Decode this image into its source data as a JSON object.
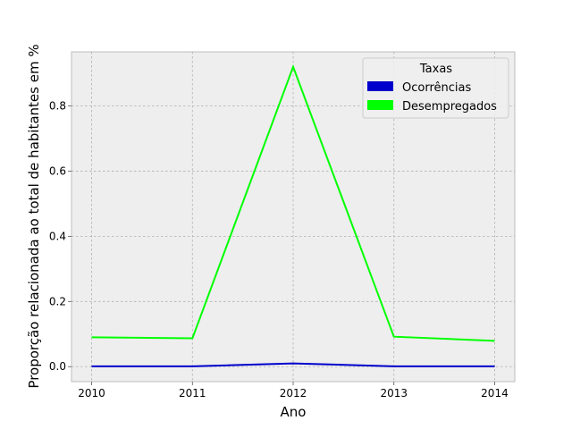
{
  "chart_data": {
    "type": "line",
    "title": "",
    "xlabel": "Ano",
    "ylabel": "Proporção relacionada ao total de habitantes em %",
    "x": [
      2010,
      2011,
      2012,
      2013,
      2014
    ],
    "x_tick_labels": [
      "2010",
      "2011",
      "2012",
      "2013",
      "2014"
    ],
    "xlim": [
      2009.8,
      2014.2
    ],
    "ylim": [
      -0.046,
      0.966
    ],
    "y_ticks": [
      0.0,
      0.2,
      0.4,
      0.6,
      0.8
    ],
    "y_tick_labels": [
      "0.0",
      "0.2",
      "0.4",
      "0.6",
      "0.8"
    ],
    "grid": true,
    "legend": {
      "title": "Taxas",
      "placement": "top-right"
    },
    "series": [
      {
        "name": "Ocorrências",
        "color": "#0000cc",
        "values": [
          0.001,
          0.001,
          0.01,
          0.001,
          0.001
        ]
      },
      {
        "name": "Desempregados",
        "color": "#00ff00",
        "values": [
          0.09,
          0.087,
          0.92,
          0.092,
          0.079
        ]
      }
    ]
  }
}
